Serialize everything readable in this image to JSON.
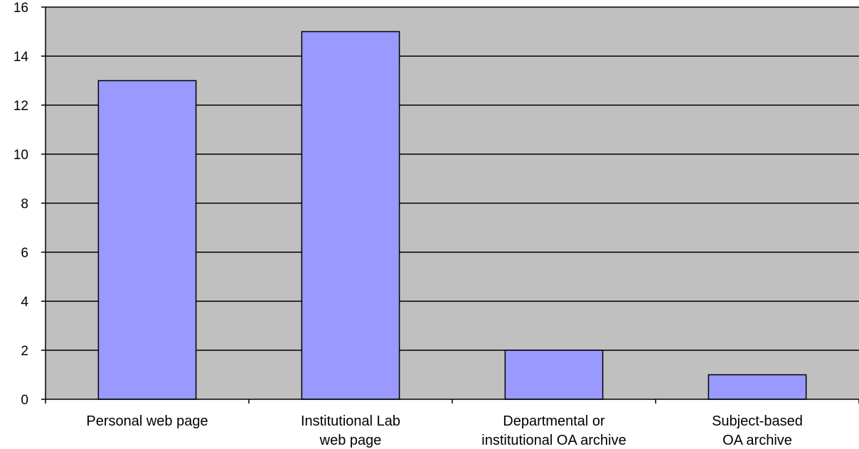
{
  "chart_data": {
    "type": "bar",
    "categories": [
      [
        "Personal web page"
      ],
      [
        "Institutional Lab",
        "web page"
      ],
      [
        "Departmental or",
        "institutional OA archive"
      ],
      [
        "Subject-based",
        "OA archive"
      ]
    ],
    "values": [
      13,
      15,
      2,
      1
    ],
    "ylim": [
      0,
      16
    ],
    "yticks": [
      0,
      2,
      4,
      6,
      8,
      10,
      12,
      14,
      16
    ],
    "grid": true,
    "legend": "none",
    "title": "",
    "xlabel": "",
    "ylabel": ""
  },
  "colors": {
    "plot_background": "#c0c0c0",
    "bar_fill": "#9999ff",
    "bar_stroke": "#000000",
    "gridline": "#000000",
    "axis": "#000000"
  }
}
